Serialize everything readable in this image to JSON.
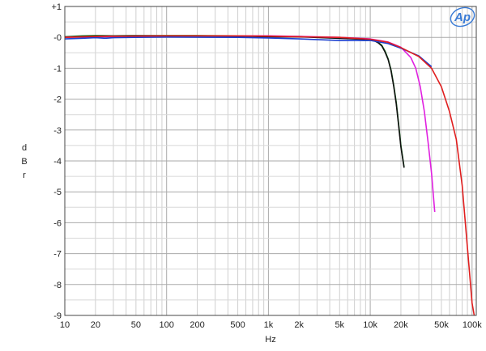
{
  "chart_data": {
    "type": "line",
    "xscale": "log",
    "xlabel": "Hz",
    "ylabel": "dBr",
    "xlim": [
      10,
      110000
    ],
    "ylim": [
      -9,
      1
    ],
    "grid": true,
    "legend": "none",
    "logo": "Ap",
    "logo_color": "#3a7bd5",
    "xticks": [
      {
        "value": 10,
        "label": "10"
      },
      {
        "value": 20,
        "label": "20"
      },
      {
        "value": 50,
        "label": "50"
      },
      {
        "value": 100,
        "label": "100"
      },
      {
        "value": 200,
        "label": "200"
      },
      {
        "value": 500,
        "label": "500"
      },
      {
        "value": 1000,
        "label": "1k"
      },
      {
        "value": 2000,
        "label": "2k"
      },
      {
        "value": 5000,
        "label": "5k"
      },
      {
        "value": 10000,
        "label": "10k"
      },
      {
        "value": 20000,
        "label": "20k"
      },
      {
        "value": 50000,
        "label": "50k"
      },
      {
        "value": 100000,
        "label": "100k"
      }
    ],
    "yticks": [
      {
        "value": 1,
        "label": "+1"
      },
      {
        "value": 0,
        "label": "-0"
      },
      {
        "value": -1,
        "label": "-1"
      },
      {
        "value": -2,
        "label": "-2"
      },
      {
        "value": -3,
        "label": "-3"
      },
      {
        "value": -4,
        "label": "-4"
      },
      {
        "value": -5,
        "label": "-5"
      },
      {
        "value": -6,
        "label": "-6"
      },
      {
        "value": -7,
        "label": "-7"
      },
      {
        "value": -8,
        "label": "-8"
      },
      {
        "value": -9,
        "label": "-9"
      }
    ],
    "series": [
      {
        "color": "#1f8a2a",
        "points": [
          [
            10,
            0.02
          ],
          [
            15,
            0.05
          ],
          [
            20,
            0.06
          ],
          [
            30,
            0.05
          ],
          [
            50,
            0.06
          ],
          [
            100,
            0.06
          ],
          [
            200,
            0.06
          ],
          [
            500,
            0.05
          ],
          [
            1000,
            0.03
          ],
          [
            2000,
            0.03
          ],
          [
            4000,
            -0.01
          ],
          [
            7000,
            -0.04
          ],
          [
            9000,
            -0.06
          ],
          [
            10000,
            -0.08
          ],
          [
            11000,
            -0.1
          ],
          [
            12000,
            -0.16
          ],
          [
            13000,
            -0.26
          ],
          [
            14000,
            -0.45
          ],
          [
            15000,
            -0.7
          ],
          [
            16000,
            -1.05
          ],
          [
            17000,
            -1.55
          ],
          [
            18000,
            -2.1
          ],
          [
            19000,
            -2.8
          ],
          [
            20000,
            -3.5
          ],
          [
            21500,
            -4.2
          ]
        ]
      },
      {
        "color": "#111111",
        "points": [
          [
            10,
            0.01
          ],
          [
            20,
            0.04
          ],
          [
            50,
            0.05
          ],
          [
            100,
            0.05
          ],
          [
            500,
            0.04
          ],
          [
            1000,
            0.02
          ],
          [
            2000,
            0.02
          ],
          [
            4000,
            -0.02
          ],
          [
            7000,
            -0.05
          ],
          [
            9000,
            -0.07
          ],
          [
            10000,
            -0.09
          ],
          [
            11000,
            -0.11
          ],
          [
            12000,
            -0.18
          ],
          [
            13000,
            -0.28
          ],
          [
            14000,
            -0.48
          ],
          [
            15000,
            -0.72
          ],
          [
            16000,
            -1.08
          ],
          [
            17000,
            -1.58
          ],
          [
            18000,
            -2.15
          ],
          [
            19000,
            -2.85
          ],
          [
            20000,
            -3.55
          ],
          [
            21500,
            -4.22
          ]
        ]
      },
      {
        "color": "#e020e0",
        "points": [
          [
            10,
            0.0
          ],
          [
            20,
            0.02
          ],
          [
            50,
            0.04
          ],
          [
            100,
            0.05
          ],
          [
            500,
            0.05
          ],
          [
            1000,
            0.05
          ],
          [
            2000,
            0.03
          ],
          [
            5000,
            0.0
          ],
          [
            10000,
            -0.05
          ],
          [
            15000,
            -0.15
          ],
          [
            20000,
            -0.32
          ],
          [
            25000,
            -0.65
          ],
          [
            28000,
            -1.0
          ],
          [
            31000,
            -1.6
          ],
          [
            34000,
            -2.4
          ],
          [
            37000,
            -3.4
          ],
          [
            40000,
            -4.4
          ],
          [
            43000,
            -5.65
          ]
        ]
      },
      {
        "color": "#1a3fd0",
        "points": [
          [
            10,
            -0.05
          ],
          [
            15,
            -0.03
          ],
          [
            20,
            -0.01
          ],
          [
            25,
            -0.03
          ],
          [
            30,
            -0.01
          ],
          [
            50,
            0.0
          ],
          [
            100,
            0.01
          ],
          [
            500,
            0.0
          ],
          [
            1000,
            -0.02
          ],
          [
            2000,
            -0.05
          ],
          [
            5000,
            -0.1
          ],
          [
            8000,
            -0.1
          ],
          [
            10000,
            -0.1
          ],
          [
            15000,
            -0.2
          ],
          [
            20000,
            -0.35
          ],
          [
            30000,
            -0.6
          ],
          [
            40000,
            -0.95
          ]
        ]
      },
      {
        "color": "#e01e1e",
        "points": [
          [
            10,
            0.0
          ],
          [
            20,
            0.03
          ],
          [
            50,
            0.04
          ],
          [
            100,
            0.05
          ],
          [
            500,
            0.05
          ],
          [
            1000,
            0.04
          ],
          [
            2000,
            0.02
          ],
          [
            5000,
            0.0
          ],
          [
            10000,
            -0.06
          ],
          [
            15000,
            -0.16
          ],
          [
            20000,
            -0.33
          ],
          [
            30000,
            -0.62
          ],
          [
            40000,
            -1.0
          ],
          [
            50000,
            -1.6
          ],
          [
            60000,
            -2.4
          ],
          [
            70000,
            -3.3
          ],
          [
            80000,
            -4.8
          ],
          [
            90000,
            -6.8
          ],
          [
            100000,
            -8.6
          ],
          [
            105000,
            -9.0
          ]
        ]
      }
    ]
  }
}
